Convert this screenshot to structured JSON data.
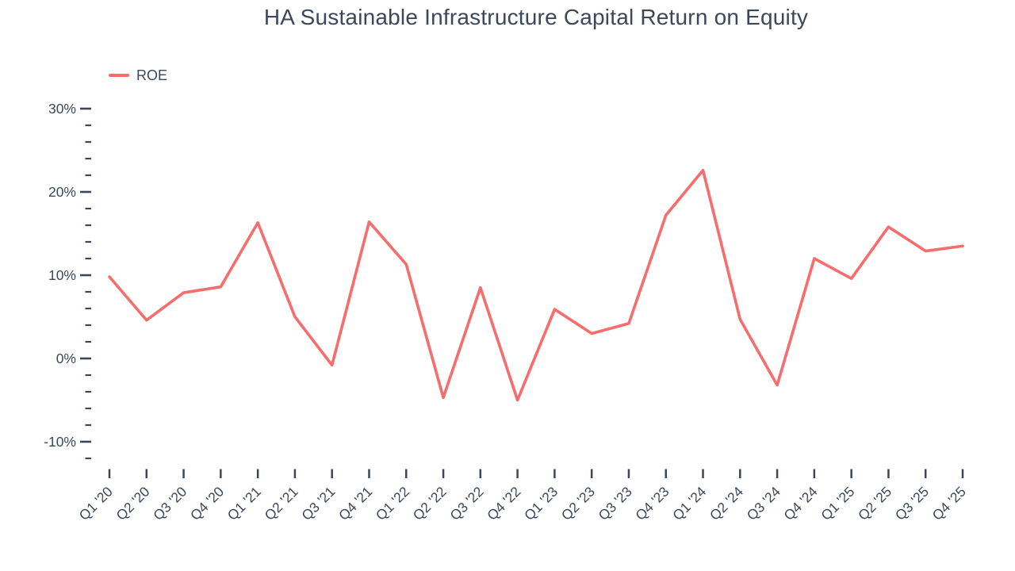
{
  "page": {
    "background": "#ffffff"
  },
  "chart_data": {
    "type": "line",
    "title": "HA Sustainable Infrastructure Capital Return on Equity",
    "text_color": "#3c485a",
    "grid": false,
    "legend_position": "top-left",
    "legend": [
      {
        "label": "ROE",
        "color": "#f76c6c"
      }
    ],
    "categories": [
      "Q1 '20",
      "Q2 '20",
      "Q3 '20",
      "Q4 '20",
      "Q1 '21",
      "Q2 '21",
      "Q3 '21",
      "Q4 '21",
      "Q1 '22",
      "Q2 '22",
      "Q3 '22",
      "Q4 '22",
      "Q1 '23",
      "Q2 '23",
      "Q3 '23",
      "Q4 '23",
      "Q1 '24",
      "Q2 '24",
      "Q3 '24",
      "Q4 '24",
      "Q1 '25",
      "Q2 '25",
      "Q3 '25",
      "Q4 '25"
    ],
    "series": [
      {
        "name": "ROE",
        "color": "#f76c6c",
        "values": [
          9.8,
          4.6,
          7.9,
          8.6,
          16.3,
          5.0,
          -0.8,
          16.4,
          11.3,
          -4.7,
          8.5,
          -5.0,
          5.9,
          3.0,
          4.2,
          17.2,
          22.6,
          4.7,
          -3.2,
          12.0,
          9.6,
          15.8,
          12.9,
          13.5
        ]
      }
    ],
    "xlabel": "",
    "ylabel": "",
    "ytick_suffix": "%",
    "yticks_major": [
      30,
      20,
      10,
      0,
      -10
    ],
    "ytick_minor_step": 2,
    "ylim": [
      -12,
      30
    ]
  }
}
